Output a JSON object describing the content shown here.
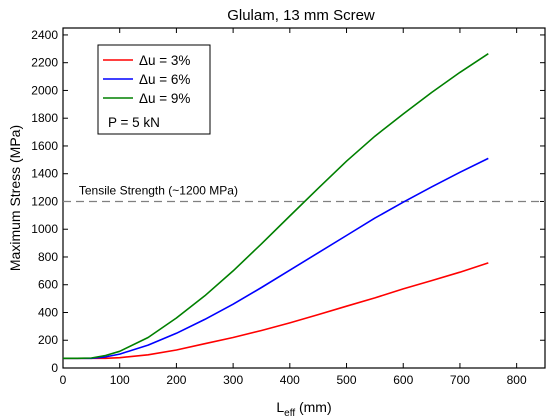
{
  "chart_data": {
    "type": "line",
    "title": "Glulam, 13 mm Screw",
    "xlabel": "L",
    "xlabel_sub": "eff",
    "xlabel_unit": " (mm)",
    "ylabel": "Maximum Stress (MPa)",
    "xlim": [
      0,
      850
    ],
    "ylim": [
      0,
      2450
    ],
    "xticks": [
      0,
      100,
      200,
      300,
      400,
      500,
      600,
      700,
      800
    ],
    "yticks": [
      0,
      200,
      400,
      600,
      800,
      1000,
      1200,
      1400,
      1600,
      1800,
      2000,
      2200,
      2400
    ],
    "grid": false,
    "legend_position": "top-left",
    "legend_note": "P = 5 kN",
    "reference_line": {
      "y": 1200,
      "label": "Tensile Strength (~1200 MPa)",
      "style": "dashed",
      "color": "#808080"
    },
    "series": [
      {
        "name": "Δu = 3%",
        "color": "#ff0000",
        "x": [
          0,
          25,
          50,
          75,
          100,
          150,
          200,
          250,
          300,
          350,
          400,
          450,
          500,
          550,
          600,
          650,
          700,
          750
        ],
        "y": [
          70,
          70,
          70,
          70,
          74,
          95,
          130,
          175,
          220,
          270,
          325,
          385,
          445,
          505,
          570,
          630,
          690,
          757
        ]
      },
      {
        "name": "Δu = 6%",
        "color": "#0000ff",
        "x": [
          0,
          25,
          50,
          75,
          100,
          150,
          200,
          250,
          300,
          350,
          400,
          450,
          500,
          550,
          600,
          650,
          700,
          750
        ],
        "y": [
          70,
          70,
          70,
          80,
          100,
          165,
          250,
          350,
          460,
          580,
          705,
          830,
          955,
          1080,
          1195,
          1305,
          1410,
          1510
        ]
      },
      {
        "name": "Δu = 9%",
        "color": "#008000",
        "x": [
          0,
          25,
          50,
          75,
          100,
          150,
          200,
          250,
          300,
          350,
          400,
          450,
          500,
          550,
          600,
          650,
          700,
          750
        ],
        "y": [
          70,
          70,
          72,
          90,
          120,
          220,
          360,
          520,
          700,
          895,
          1095,
          1295,
          1490,
          1670,
          1830,
          1985,
          2130,
          2265
        ]
      }
    ]
  }
}
